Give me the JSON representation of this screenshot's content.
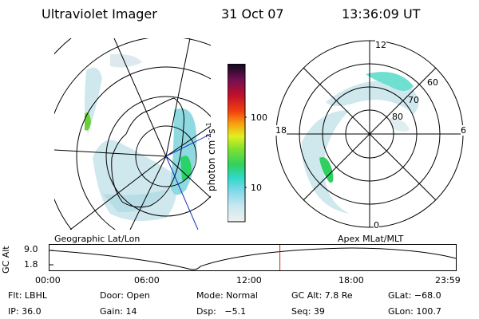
{
  "header": {
    "instrument": "Ultraviolet Imager",
    "date": "31 Oct 07",
    "time": "13:36:09 UT"
  },
  "colorbar": {
    "unit_label": "photon cm",
    "unit_exp1": "-2",
    "unit_s": "s",
    "unit_exp2": "-1",
    "labels": [
      "100",
      "10"
    ]
  },
  "polar_grid": {
    "mlt_labels": {
      "top": "12",
      "left": "18",
      "right": "6",
      "bottom": "0"
    },
    "lat_labels": [
      "60",
      "70",
      "80"
    ]
  },
  "altitude_panel": {
    "axis_label": "GC Alt",
    "ticks": [
      "9.0",
      "1.8"
    ],
    "left_caption": "Geographic Lat/Lon",
    "right_caption": "Apex MLat/MLT",
    "time_ticks": [
      "00:00",
      "06:00",
      "12:00",
      "18:00",
      "23:59"
    ],
    "current_time_fraction": 0.567
  },
  "info": {
    "flt": "Flt: LBHL",
    "door": "Door: Open",
    "mode": "Mode: Normal",
    "gc_alt": "GC Alt: 7.8 Re",
    "glat": "GLat: −68.0",
    "ip": "IP: 36.0",
    "gain": "Gain: 14",
    "dsp": "Dsp:   −5.1",
    "seq": "Seq: 39",
    "glon": "GLon: 100.7"
  },
  "colors": {
    "orbit_marker": "#d02020",
    "map_line": "#000000",
    "grid_blue": "#1030c0"
  }
}
